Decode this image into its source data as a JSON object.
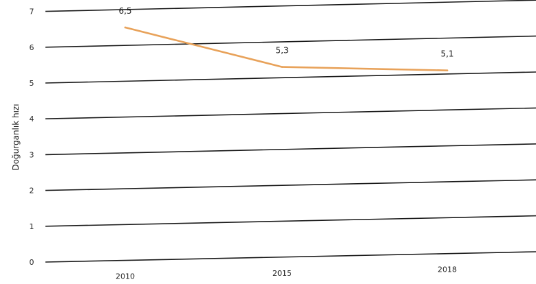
{
  "chart_data": {
    "type": "line",
    "title": "",
    "xlabel": "",
    "ylabel": "Doğurganlık hızı",
    "categories": [
      "2010",
      "2015",
      "2018"
    ],
    "series": [
      {
        "values": [
          6.5,
          5.3,
          5.1
        ],
        "labels": [
          "6,5",
          "5,3",
          "5,1"
        ],
        "color": "#e8a25a"
      }
    ],
    "ylim": [
      0,
      7
    ],
    "yticks": [
      "0",
      "1",
      "2",
      "3",
      "4",
      "5",
      "6",
      "7"
    ],
    "grid": true,
    "legend": "none"
  }
}
